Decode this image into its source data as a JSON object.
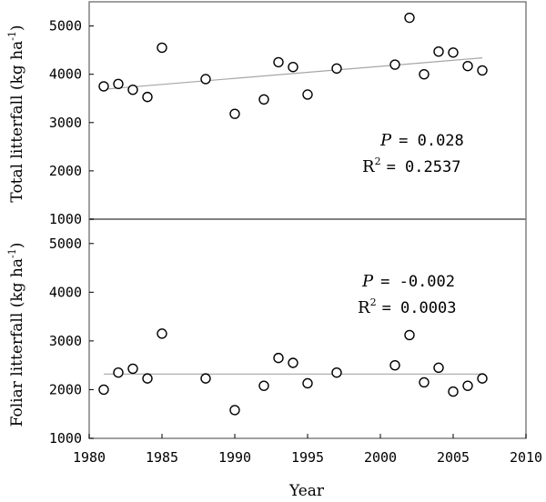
{
  "chart_data": [
    {
      "type": "scatter",
      "ylabel_pre": "Total litterfall (kg ha",
      "ylabel_sup": "-1",
      "ylabel_post": ")",
      "ylim": [
        1000,
        5500
      ],
      "yticks": [
        1000,
        2000,
        3000,
        4000,
        5000
      ],
      "xlim": [
        1980,
        2010
      ],
      "points": [
        {
          "x": 1981,
          "y": 3750
        },
        {
          "x": 1982,
          "y": 3800
        },
        {
          "x": 1983,
          "y": 3680
        },
        {
          "x": 1984,
          "y": 3530
        },
        {
          "x": 1985,
          "y": 4550
        },
        {
          "x": 1988,
          "y": 3900
        },
        {
          "x": 1990,
          "y": 3180
        },
        {
          "x": 1992,
          "y": 3480
        },
        {
          "x": 1993,
          "y": 4250
        },
        {
          "x": 1994,
          "y": 4150
        },
        {
          "x": 1995,
          "y": 3580
        },
        {
          "x": 1997,
          "y": 4120
        },
        {
          "x": 2001,
          "y": 4200
        },
        {
          "x": 2002,
          "y": 5170
        },
        {
          "x": 2003,
          "y": 4000
        },
        {
          "x": 2004,
          "y": 4470
        },
        {
          "x": 2005,
          "y": 4450
        },
        {
          "x": 2006,
          "y": 4170
        },
        {
          "x": 2007,
          "y": 4080
        }
      ],
      "trend": {
        "x": [
          1981,
          2007
        ],
        "y": [
          3690,
          4340
        ]
      },
      "p_label": "P",
      "p_value": "= 0.028",
      "r2_label": "R",
      "r2_sup": "2",
      "r2_value": "= 0.2537"
    },
    {
      "type": "scatter",
      "ylabel_pre": "Foliar litterfall (kg ha",
      "ylabel_sup": "-1",
      "ylabel_post": ")",
      "ylim": [
        1000,
        5500
      ],
      "yticks": [
        1000,
        2000,
        3000,
        4000,
        5000
      ],
      "xlim": [
        1980,
        2010
      ],
      "points": [
        {
          "x": 1981,
          "y": 2000
        },
        {
          "x": 1982,
          "y": 2350
        },
        {
          "x": 1983,
          "y": 2430
        },
        {
          "x": 1984,
          "y": 2230
        },
        {
          "x": 1985,
          "y": 3150
        },
        {
          "x": 1988,
          "y": 2230
        },
        {
          "x": 1990,
          "y": 1580
        },
        {
          "x": 1992,
          "y": 2080
        },
        {
          "x": 1993,
          "y": 2650
        },
        {
          "x": 1994,
          "y": 2550
        },
        {
          "x": 1995,
          "y": 2130
        },
        {
          "x": 1997,
          "y": 2350
        },
        {
          "x": 2001,
          "y": 2500
        },
        {
          "x": 2002,
          "y": 3120
        },
        {
          "x": 2003,
          "y": 2150
        },
        {
          "x": 2004,
          "y": 2450
        },
        {
          "x": 2005,
          "y": 1960
        },
        {
          "x": 2006,
          "y": 2080
        },
        {
          "x": 2007,
          "y": 2230
        }
      ],
      "trend": {
        "x": [
          1981,
          2007
        ],
        "y": [
          2320,
          2320
        ]
      },
      "p_label": "P",
      "p_value": "= -0.002",
      "r2_label": "R",
      "r2_sup": "2",
      "r2_value": "= 0.0003"
    }
  ],
  "xaxis": {
    "title": "Year",
    "ticks": [
      1980,
      1985,
      1990,
      1995,
      2000,
      2005,
      2010
    ]
  },
  "colors": {
    "frame": "#808080",
    "trend": "#a6a6a6",
    "marker_edge": "#000000",
    "marker_fill": "#ffffff"
  }
}
